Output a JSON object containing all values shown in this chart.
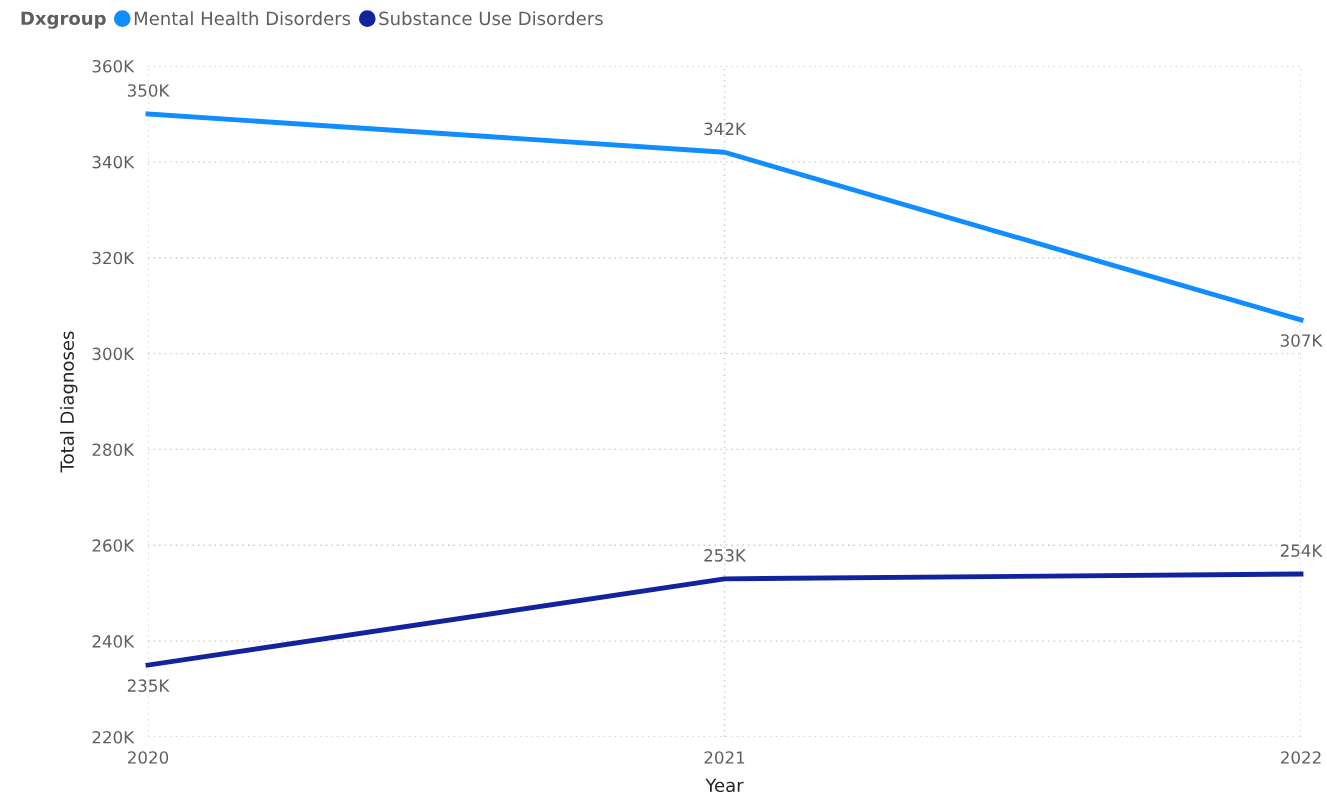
{
  "chart_data": {
    "type": "line",
    "xlabel": "Year",
    "ylabel": "Total Diagnoses",
    "legend_title": "Dxgroup",
    "legend": "top left",
    "grid": true,
    "marker": "none",
    "line_style": "solid",
    "categories": [
      "2020",
      "2021",
      "2022"
    ],
    "ylim": [
      220000,
      360000
    ],
    "yticks": [
      {
        "value": 220000,
        "label": "220K"
      },
      {
        "value": 240000,
        "label": "240K"
      },
      {
        "value": 260000,
        "label": "260K"
      },
      {
        "value": 280000,
        "label": "280K"
      },
      {
        "value": 300000,
        "label": "300K"
      },
      {
        "value": 320000,
        "label": "320K"
      },
      {
        "value": 340000,
        "label": "340K"
      },
      {
        "value": 360000,
        "label": "360K"
      }
    ],
    "series": [
      {
        "name": "Mental Health Disorders",
        "color": "#118dff",
        "values": [
          350000,
          342000,
          307000
        ],
        "value_labels": [
          "350K",
          "342K",
          "307K"
        ]
      },
      {
        "name": "Substance Use Disorders",
        "color": "#12239e",
        "values": [
          235000,
          253000,
          254000
        ],
        "value_labels": [
          "235K",
          "253K",
          "254K"
        ]
      }
    ]
  }
}
